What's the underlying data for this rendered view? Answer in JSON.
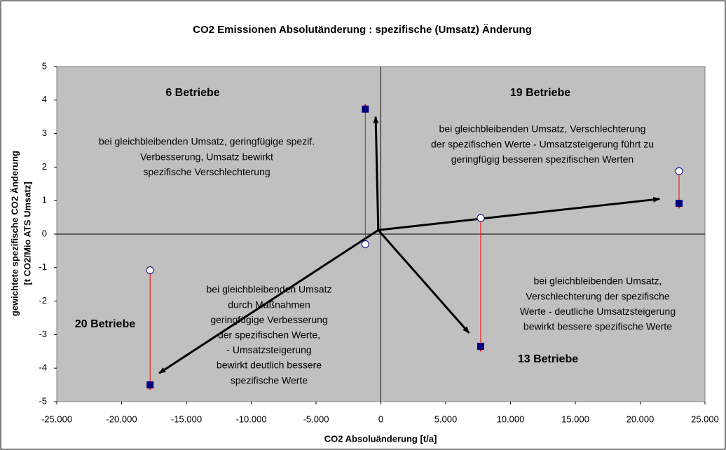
{
  "chart_data": {
    "type": "scatter",
    "title": "CO2 Emissionen Absolutänderung : spezifische (Umsatz) Änderung",
    "x_label": "CO2 Absoluänderung [t/a]",
    "y_label": [
      "gewichtete spezifische CO2 Änderung",
      "[t CO2/Mio ATS Umsatz]"
    ],
    "xlim": [
      -25000,
      25000
    ],
    "ylim": [
      -5,
      5
    ],
    "xticks": [
      {
        "value": -25000,
        "label": "-25.000"
      },
      {
        "value": -20000,
        "label": "-20.000"
      },
      {
        "value": -15000,
        "label": "-15.000"
      },
      {
        "value": -10000,
        "label": "-10.000"
      },
      {
        "value": -5000,
        "label": "-5.000"
      },
      0,
      {
        "value": 5000,
        "label": "5.000"
      },
      {
        "value": 10000,
        "label": "10.000"
      },
      {
        "value": 15000,
        "label": "15.000"
      },
      {
        "value": 20000,
        "label": "20.000"
      },
      {
        "value": 25000,
        "label": "25.000"
      }
    ],
    "yticks": [
      -5,
      -4,
      -3,
      -2,
      -1,
      0,
      1,
      2,
      3,
      4,
      5
    ],
    "series": [
      {
        "marker": "circle",
        "color": "#ffffff",
        "x": [
          -17800,
          -1200,
          7700,
          23000
        ],
        "values": [
          -1.08,
          -0.3,
          0.48,
          1.88
        ]
      },
      {
        "marker": "square",
        "color": "#000080",
        "x": [
          -17800,
          -1200,
          7700,
          23000
        ],
        "values": [
          -4.5,
          3.73,
          -3.35,
          0.92
        ]
      }
    ],
    "change_arrow_color": "#ff0000",
    "vectors": {
      "color": "#000000",
      "x0": -200,
      "y0": 0.12,
      "x": [
        -400,
        21500,
        -17100,
        6800
      ],
      "y": [
        3.5,
        1.05,
        -4.15,
        -2.95
      ]
    },
    "annotations": [
      {
        "lines": [
          "6 Betriebe"
        ],
        "bold": true
      },
      {
        "lines": [
          "19 Betriebe"
        ],
        "bold": true
      },
      {
        "lines": [
          "20 Betriebe"
        ],
        "bold": true
      },
      {
        "lines": [
          "13 Betriebe"
        ],
        "bold": true
      },
      {
        "lines": [
          "bei gleichbleibenden Umsatz, geringfügige spezif.",
          "Verbesserung, Umsatz bewirkt",
          "spezifische Verschlechterung"
        ],
        "bold": false
      },
      {
        "lines": [
          "bei gleichbleibenden Umsatz, Verschlechterung",
          "der spezifischen Werte  - Umsatzsteigerung führt zu",
          "geringfügig besseren spezifischen Werten"
        ],
        "bold": false
      },
      {
        "lines": [
          "bei gleichbleibenden Umsatz",
          "durch Maßnahmen",
          "geringfügige Verbesserung",
          "der spezifischen Werte,",
          "-  Umsatzsteigerung",
          "bewirkt deutlich bessere",
          "spezifische Werte"
        ],
        "bold": false
      },
      {
        "lines": [
          "bei gleichbleibenden Umsatz,",
          "Verschlechterung der spezifische",
          "Werte - deutliche Umsatzsteigerung",
          "bewirkt bessere spezifische  Werte"
        ],
        "bold": false
      }
    ]
  }
}
